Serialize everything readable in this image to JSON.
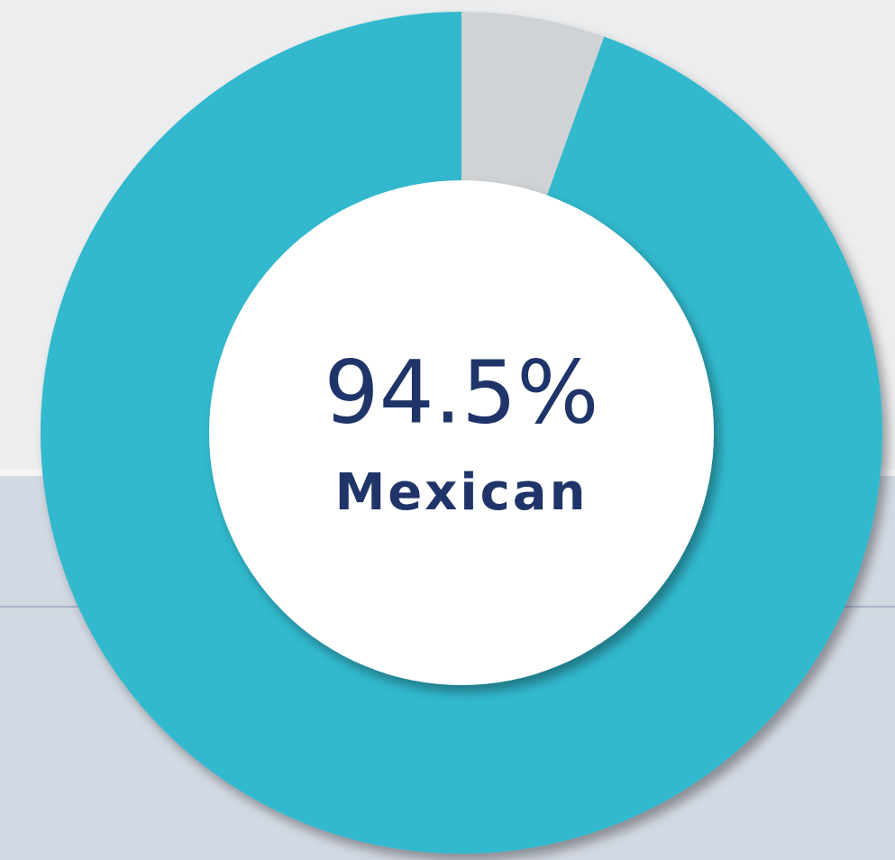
{
  "chart_data": {
    "type": "donut",
    "categories": [
      "Mexican",
      null
    ],
    "values": [
      94.5,
      5.5
    ],
    "value_labels": [
      "94.5%",
      null
    ],
    "colors": [
      "#33b9ce",
      "#d0d3d6"
    ]
  }
}
